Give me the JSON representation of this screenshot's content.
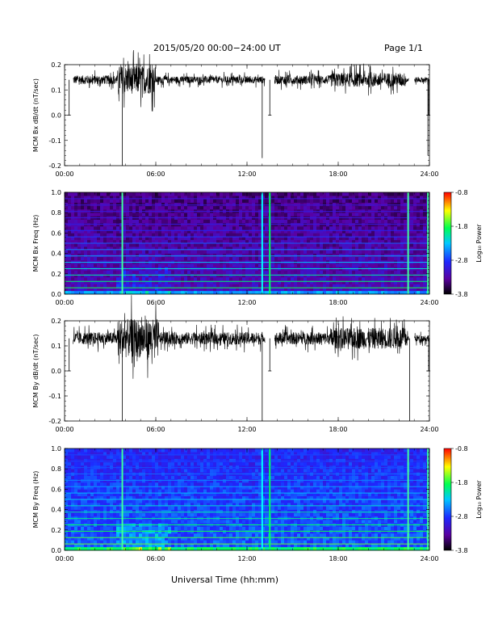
{
  "header": {
    "title": "2015/05/20  00:00−24:00 UT",
    "page": "Page 1/1"
  },
  "x_axis_label": "Universal Time (hh:mm)",
  "chart_data": [
    {
      "type": "line",
      "ylabel": "MCM Bx dB/dt (nT/sec)",
      "xlim": [
        0,
        24
      ],
      "ylim": [
        -0.2,
        0.2
      ],
      "x_tick_labels": [
        "00:00",
        "06:00",
        "12:00",
        "18:00",
        "24:00"
      ],
      "x_ticks": [
        0,
        6,
        12,
        18,
        24
      ],
      "y_tick_labels": [
        "0.2",
        "0.1",
        "0.0",
        "-0.1",
        "-0.2"
      ],
      "y_ticks": [
        0.2,
        0.1,
        0.0,
        -0.1,
        -0.2
      ],
      "baseline": 0.14,
      "noise": [
        {
          "t": [
            0.5,
            3.5
          ],
          "amp": 0.025
        },
        {
          "t": [
            3.5,
            6.0
          ],
          "amp": 0.08
        },
        {
          "t": [
            6.0,
            13.0
          ],
          "amp": 0.02
        },
        {
          "t": [
            13.5,
            17.5
          ],
          "amp": 0.025
        },
        {
          "t": [
            17.5,
            22.5
          ],
          "amp": 0.04
        },
        {
          "t": [
            22.5,
            24.0
          ],
          "amp": 0.015
        }
      ],
      "spikes": [
        {
          "t": 3.8,
          "y": -0.2
        },
        {
          "t": 13.0,
          "y": -0.17
        },
        {
          "t": 23.9,
          "y": -0.16
        }
      ],
      "gaps": [
        [
          0.0,
          0.55
        ],
        [
          13.2,
          13.8
        ],
        [
          22.65,
          23.0
        ]
      ],
      "dropouts": [
        {
          "t": 0.3,
          "y": 0.0
        },
        {
          "t": 13.5,
          "y": 0.0
        },
        {
          "t": 23.95,
          "y": 0.0
        }
      ]
    },
    {
      "type": "heatmap",
      "ylabel": "MCM Bx Freq (Hz)",
      "xlim": [
        0,
        24
      ],
      "ylim": [
        0.0,
        1.0
      ],
      "x_tick_labels": [
        "00:00",
        "06:00",
        "12:00",
        "18:00",
        "24:00"
      ],
      "x_ticks": [
        0,
        6,
        12,
        18,
        24
      ],
      "y_tick_labels": [
        "1.0",
        "0.8",
        "0.6",
        "0.4",
        "0.2",
        "0.0"
      ],
      "y_ticks": [
        1.0,
        0.8,
        0.6,
        0.4,
        0.2,
        0.0
      ],
      "colorbar_label": "Log₁₀ Power",
      "colorbar_ticks": [
        "-0.8",
        "-1.8",
        "-2.8",
        "-3.8"
      ],
      "colorbar_range": [
        -3.8,
        -0.8
      ],
      "harmonic_spacing_hz": 0.0625,
      "vertical_lines": [
        3.8,
        13.0,
        13.5,
        22.6,
        23.9
      ]
    },
    {
      "type": "line",
      "ylabel": "MCM By dB/dt (nT/sec)",
      "xlim": [
        0,
        24
      ],
      "ylim": [
        -0.2,
        0.2
      ],
      "x_tick_labels": [
        "00:00",
        "06:00",
        "12:00",
        "18:00",
        "24:00"
      ],
      "x_ticks": [
        0,
        6,
        12,
        18,
        24
      ],
      "y_tick_labels": [
        "0.2",
        "0.1",
        "0.0",
        "-0.1",
        "-0.2"
      ],
      "y_ticks": [
        0.2,
        0.1,
        0.0,
        -0.1,
        -0.2
      ],
      "baseline": 0.13,
      "noise": [
        {
          "t": [
            0.5,
            3.5
          ],
          "amp": 0.035
        },
        {
          "t": [
            3.5,
            6.2
          ],
          "amp": 0.11
        },
        {
          "t": [
            6.2,
            13.0
          ],
          "amp": 0.035
        },
        {
          "t": [
            13.5,
            17.5
          ],
          "amp": 0.035
        },
        {
          "t": [
            17.5,
            22.5
          ],
          "amp": 0.06
        },
        {
          "t": [
            22.5,
            24.0
          ],
          "amp": 0.02
        }
      ],
      "spikes": [
        {
          "t": 3.8,
          "y": -0.2
        },
        {
          "t": 13.0,
          "y": -0.2
        },
        {
          "t": 22.7,
          "y": -0.2
        }
      ],
      "gaps": [
        [
          0.0,
          0.55
        ],
        [
          13.2,
          13.8
        ],
        [
          22.65,
          23.0
        ]
      ],
      "dropouts": [
        {
          "t": 0.3,
          "y": 0.0
        },
        {
          "t": 13.5,
          "y": 0.0
        },
        {
          "t": 23.95,
          "y": 0.0
        }
      ]
    },
    {
      "type": "heatmap",
      "ylabel": "MCM By Freq (Hz)",
      "xlim": [
        0,
        24
      ],
      "ylim": [
        0.0,
        1.0
      ],
      "x_tick_labels": [
        "00:00",
        "06:00",
        "12:00",
        "18:00",
        "24:00"
      ],
      "x_ticks": [
        0,
        6,
        12,
        18,
        24
      ],
      "y_tick_labels": [
        "1.0",
        "0.8",
        "0.6",
        "0.4",
        "0.2",
        "0.0"
      ],
      "y_ticks": [
        1.0,
        0.8,
        0.6,
        0.4,
        0.2,
        0.0
      ],
      "colorbar_label": "Log₁₀ Power",
      "colorbar_ticks": [
        "-0.8",
        "-1.8",
        "-2.8",
        "-3.8"
      ],
      "colorbar_range": [
        -3.8,
        -0.8
      ],
      "harmonic_spacing_hz": 0.0625,
      "vertical_lines": [
        3.8,
        13.0,
        13.5,
        22.6,
        23.9
      ]
    }
  ]
}
